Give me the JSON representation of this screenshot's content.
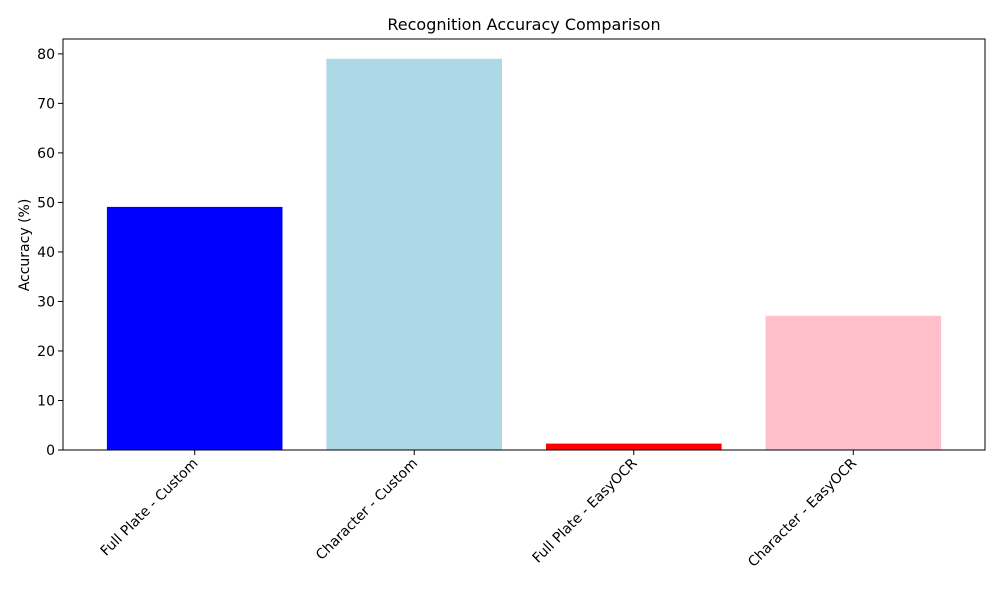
{
  "chart_data": {
    "type": "bar",
    "title": "Recognition Accuracy Comparison",
    "xlabel": "",
    "ylabel": "Accuracy (%)",
    "categories": [
      "Full Plate - Custom",
      "Character - Custom",
      "Full Plate - EasyOCR",
      "Character - EasyOCR"
    ],
    "values": [
      49.1,
      79.0,
      1.3,
      27.1
    ],
    "colors": [
      "#0000ff",
      "#add8e6",
      "#ff0000",
      "#ffc0cb"
    ],
    "ylim": [
      0,
      83
    ],
    "yticks": [
      0,
      10,
      20,
      30,
      40,
      50,
      60,
      70,
      80
    ],
    "grid": false,
    "legend": "none",
    "xtick_rotation_deg": 45
  }
}
